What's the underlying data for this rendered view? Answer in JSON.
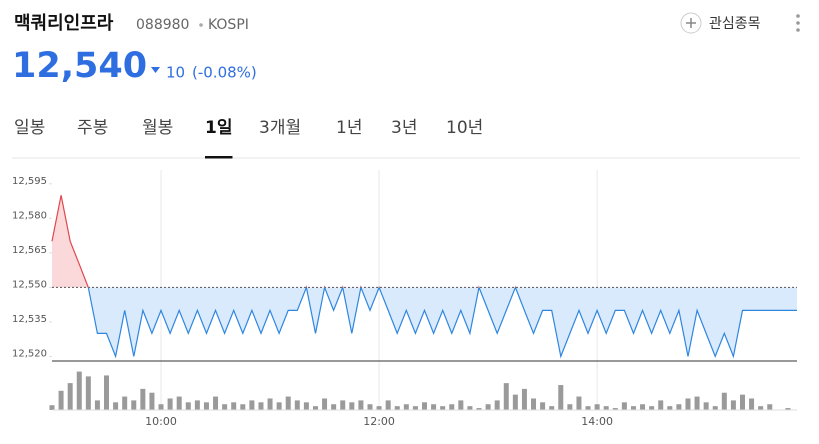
{
  "header": {
    "name": "맥쿼리인프라",
    "code": "088980",
    "market": "KOSPI",
    "watch": "관심종목",
    "price": "12,540",
    "change": "10",
    "change_pct": "(-0.08%)"
  },
  "tabs": {
    "items": [
      "일봉",
      "주봉",
      "월봉",
      "1일",
      "3개월",
      "1년",
      "3년",
      "10년"
    ],
    "active": 3
  },
  "chart_data": {
    "type": "line",
    "x": [
      "09:00",
      "09:05",
      "09:10",
      "09:15",
      "09:20",
      "09:25",
      "09:30",
      "09:35",
      "09:40",
      "09:45",
      "09:50",
      "09:55",
      "10:00",
      "10:05",
      "10:10",
      "10:15",
      "10:20",
      "10:25",
      "10:30",
      "10:35",
      "10:40",
      "10:45",
      "10:50",
      "10:55",
      "11:00",
      "11:05",
      "11:10",
      "11:15",
      "11:20",
      "11:25",
      "11:30",
      "11:35",
      "11:40",
      "11:45",
      "11:50",
      "11:55",
      "12:00",
      "12:05",
      "12:10",
      "12:15",
      "12:20",
      "12:25",
      "12:30",
      "12:35",
      "12:40",
      "12:45",
      "12:50",
      "12:55",
      "13:00",
      "13:05",
      "13:10",
      "13:15",
      "13:20",
      "13:25",
      "13:30",
      "13:35",
      "13:40",
      "13:45",
      "13:50",
      "13:55",
      "14:00",
      "14:05",
      "14:10",
      "14:15",
      "14:20",
      "14:25",
      "14:30",
      "14:35",
      "14:40",
      "14:45",
      "14:50",
      "14:55",
      "15:00",
      "15:05",
      "15:10",
      "15:15",
      "15:20",
      "15:25",
      "15:30",
      "15:35",
      "15:40",
      "15:45",
      "15:50"
    ],
    "values": [
      12570,
      12590,
      12570,
      12560,
      12550,
      12530,
      12530,
      12520,
      12540,
      12520,
      12540,
      12530,
      12540,
      12530,
      12540,
      12530,
      12540,
      12530,
      12540,
      12530,
      12540,
      12530,
      12540,
      12530,
      12540,
      12530,
      12540,
      12540,
      12550,
      12530,
      12550,
      12540,
      12550,
      12530,
      12550,
      12540,
      12550,
      12540,
      12530,
      12540,
      12530,
      12540,
      12530,
      12540,
      12530,
      12540,
      12530,
      12550,
      12540,
      12530,
      12540,
      12550,
      12540,
      12530,
      12540,
      12540,
      12520,
      12530,
      12540,
      12530,
      12540,
      12530,
      12540,
      12540,
      12530,
      12540,
      12530,
      12540,
      12530,
      12540,
      12520,
      12540,
      12530,
      12520,
      12530,
      12520,
      12540,
      12540,
      12540,
      12540,
      12540,
      12540,
      12540
    ],
    "volume": [
      5,
      20,
      28,
      40,
      35,
      10,
      36,
      8,
      14,
      10,
      22,
      18,
      6,
      12,
      14,
      8,
      10,
      8,
      14,
      6,
      8,
      6,
      10,
      8,
      12,
      8,
      14,
      10,
      8,
      4,
      12,
      6,
      10,
      8,
      10,
      6,
      4,
      10,
      4,
      6,
      4,
      8,
      6,
      4,
      6,
      10,
      4,
      2,
      6,
      10,
      28,
      16,
      22,
      12,
      8,
      4,
      26,
      6,
      14,
      4,
      6,
      4,
      2,
      8,
      4,
      6,
      4,
      10,
      4,
      6,
      12,
      14,
      8,
      4,
      18,
      10,
      16,
      12,
      4,
      6,
      0,
      2,
      0
    ],
    "baseline": 12550,
    "up_color": "#e0474c",
    "up_fill": "#fbd9da",
    "down_color": "#2f86e0",
    "down_fill": "#d9eafc",
    "volume_color": "#9a9a9a",
    "xlim": [
      "09:00",
      "15:50"
    ],
    "xticks": [
      "10:00",
      "12:00",
      "14:00"
    ],
    "ylim": [
      12518,
      12601
    ],
    "yticks": [
      {
        "value": 12595,
        "label": "12,595"
      },
      {
        "value": 12580,
        "label": "12,580"
      },
      {
        "value": 12565,
        "label": "12,565"
      },
      {
        "value": 12550,
        "label": "12,550"
      },
      {
        "value": 12535,
        "label": "12,535"
      },
      {
        "value": 12520,
        "label": "12,520"
      }
    ],
    "y2lim": [
      0,
      50
    ]
  }
}
